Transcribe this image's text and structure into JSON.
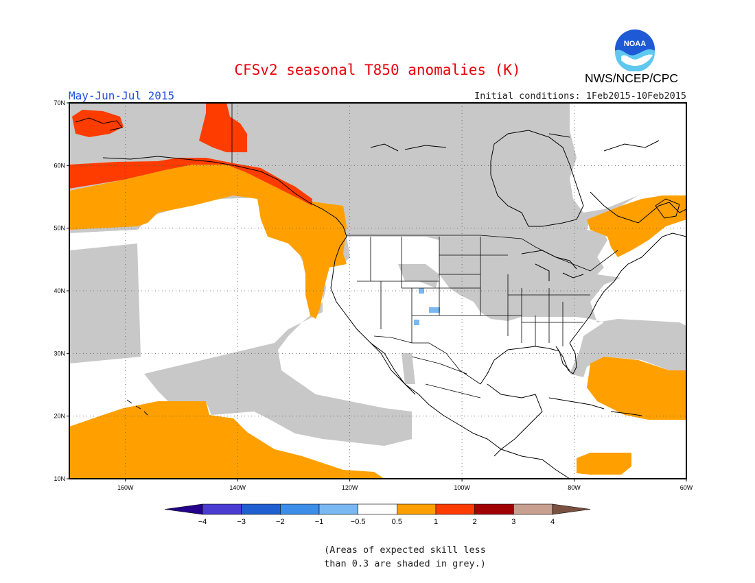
{
  "header": {
    "title": "CFSv2 seasonal T850 anomalies (K)",
    "period": "May-Jun-Jul 2015",
    "initial_conditions": "Initial conditions: 1Feb2015-10Feb2015",
    "organization": "NWS/NCEP/CPC",
    "logo_text": "NOAA"
  },
  "map": {
    "lat_labels": [
      "70N",
      "60N",
      "50N",
      "40N",
      "30N",
      "20N",
      "10N"
    ],
    "lon_labels": [
      "160W",
      "140W",
      "120W",
      "100W",
      "80W",
      "60W"
    ],
    "grid": "dotted",
    "skill_mask_color": "#c8c8c8"
  },
  "colorbar": {
    "labels": [
      "-4",
      "-3",
      "-2",
      "-1",
      "-0.5",
      "0.5",
      "1",
      "2",
      "3",
      "4"
    ],
    "colors": [
      "#24008c",
      "#4a3bd1",
      "#1f5fd0",
      "#3c8ee8",
      "#7ab8f2",
      "#ffffff",
      "#ffa000",
      "#ff3c00",
      "#a00000",
      "#c8a090",
      "#7a5040"
    ]
  },
  "footnote": {
    "line1": "(Areas of expected skill less",
    "line2": "than 0.3 are shaded in grey.)"
  },
  "colors": {
    "title": "#e8000b",
    "period": "#1f4fe0",
    "grey": "#c8c8c8",
    "orange": "#ffa000",
    "red": "#ff3c00",
    "lightblue": "#7ab8f2",
    "coast": "#000000"
  }
}
